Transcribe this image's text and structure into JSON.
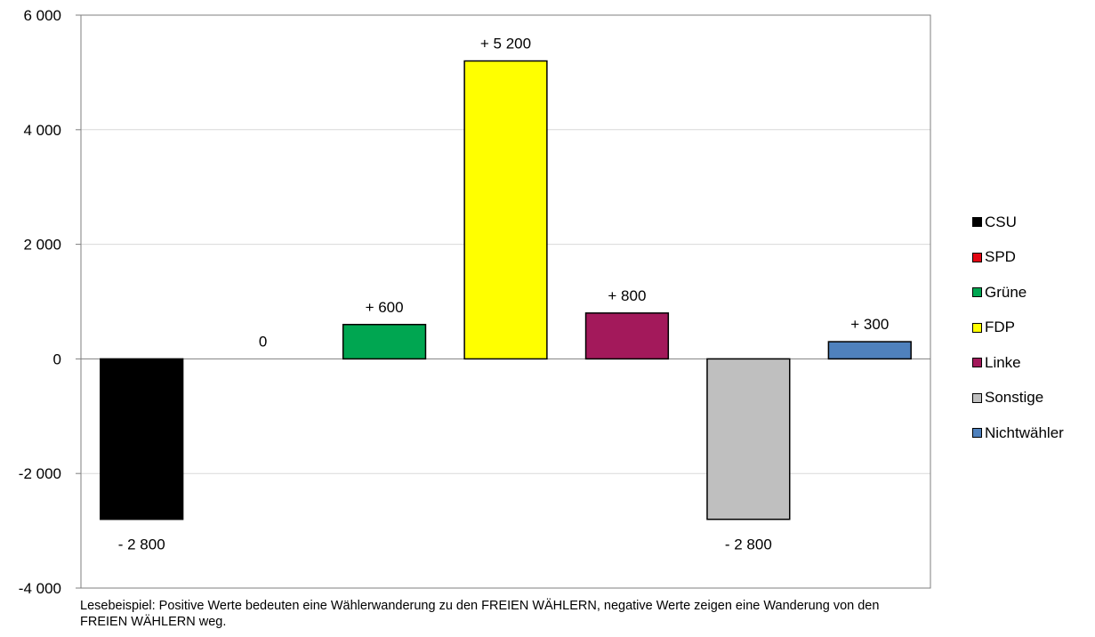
{
  "chart_data": {
    "type": "bar",
    "categories": [
      "CSU",
      "SPD",
      "Grüne",
      "FDP",
      "Linke",
      "Sonstige",
      "Nichtwähler"
    ],
    "values": [
      -2800,
      0,
      600,
      5200,
      800,
      -2800,
      300
    ],
    "data_labels": [
      "- 2 800",
      "0",
      "+ 600",
      "+ 5 200",
      "+ 800",
      "- 2 800",
      "+ 300"
    ],
    "colors": [
      "#000000",
      "#e30613",
      "#00a651",
      "#ffff00",
      "#a3195b",
      "#bfbfbf",
      "#4f81bd"
    ],
    "ylim": [
      -4000,
      6000
    ],
    "yticks": [
      -4000,
      -2000,
      0,
      2000,
      4000,
      6000
    ],
    "ytick_labels": [
      "-4 000",
      "-2 000",
      "0",
      "2 000",
      "4 000",
      "6 000"
    ],
    "grid": true,
    "legend_position": "right",
    "footnote": "Lesebeispiel: Positive Werte bedeuten eine Wählerwanderung zu den FREIEN WÄHLERN, negative Werte zeigen eine Wanderung von den FREIEN WÄHLERN weg."
  }
}
